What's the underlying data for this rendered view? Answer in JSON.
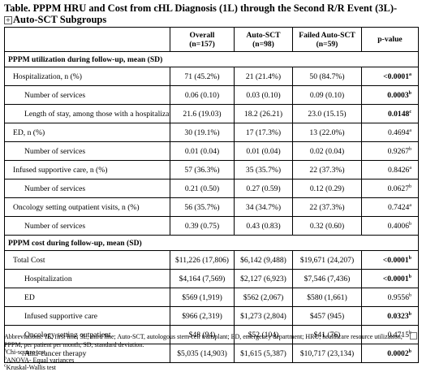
{
  "title_line1": "Table. PPPM HRU and Cost from cHL Diagnosis (1L) through the Second R/R Event (3L)-",
  "title_line2": "Auto-SCT Subgroups",
  "anchor_glyph": "+",
  "headers": {
    "overall": "Overall",
    "overall_n": "(n=157)",
    "auto": "Auto-SCT",
    "auto_n": "(n=98)",
    "failed": "Failed Auto-SCT",
    "failed_n": "(n=59)",
    "pvalue": "p-value"
  },
  "sections": [
    {
      "heading": "PPPM utilization during follow-up, mean (SD)",
      "rows": [
        {
          "label": "Hospitalization, n (%)",
          "overall": "71 (45.2%)",
          "auto": "21 (21.4%)",
          "failed": "50 (84.7%)",
          "p": "<0.0001",
          "sup": "a",
          "bold": true,
          "indent": 1
        },
        {
          "label": "Number of services",
          "overall": "0.06 (0.10)",
          "auto": "0.03 (0.10)",
          "failed": "0.09 (0.10)",
          "p": "0.0003",
          "sup": "b",
          "bold": true,
          "indent": 2
        },
        {
          "label": "Length of stay, among those with a hospitalization",
          "overall": "21.6 (19.03)",
          "auto": "18.2 (26.21)",
          "failed": "23.0 (15.15)",
          "p": "0.0148",
          "sup": "c",
          "bold": true,
          "indent": 2
        },
        {
          "label": "ED, n (%)",
          "overall": "30 (19.1%)",
          "auto": "17 (17.3%)",
          "failed": "13 (22.0%)",
          "p": "0.4694",
          "sup": "a",
          "bold": false,
          "indent": 1
        },
        {
          "label": "Number of services",
          "overall": "0.01 (0.04)",
          "auto": "0.01 (0.04)",
          "failed": "0.02 (0.04)",
          "p": "0.9267",
          "sup": "b",
          "bold": false,
          "indent": 2
        },
        {
          "label": "Infused supportive care, n (%)",
          "overall": "57 (36.3%)",
          "auto": "35 (35.7%)",
          "failed": "22 (37.3%)",
          "p": "0.8426",
          "sup": "a",
          "bold": false,
          "indent": 1
        },
        {
          "label": "Number of services",
          "overall": "0.21 (0.50)",
          "auto": "0.27 (0.59)",
          "failed": "0.12 (0.29)",
          "p": "0.0627",
          "sup": "b",
          "bold": false,
          "indent": 2
        },
        {
          "label": "Oncology setting outpatient visits, n (%)",
          "overall": "56 (35.7%)",
          "auto": "34 (34.7%)",
          "failed": "22 (37.3%)",
          "p": "0.7424",
          "sup": "a",
          "bold": false,
          "indent": 1
        },
        {
          "label": "Number of services",
          "overall": "0.39 (0.75)",
          "auto": "0.43 (0.83)",
          "failed": "0.32 (0.60)",
          "p": "0.4006",
          "sup": "b",
          "bold": false,
          "indent": 2
        }
      ]
    },
    {
      "heading": "PPPM cost during follow-up, mean (SD)",
      "rows": [
        {
          "label": "Total Cost",
          "overall": "$11,226 (17,806)",
          "auto": "$6,142 (9,488)",
          "failed": "$19,671 (24,207)",
          "p": "<0.0001",
          "sup": "b",
          "bold": true,
          "indent": 1
        },
        {
          "label": "Hospitalization",
          "overall": "$4,164 (7,569)",
          "auto": "$2,127 (6,923)",
          "failed": "$7,546 (7,436)",
          "p": "<0.0001",
          "sup": "b",
          "bold": true,
          "indent": 2
        },
        {
          "label": "ED",
          "overall": "$569 (1,919)",
          "auto": "$562 (2,067)",
          "failed": "$580 (1,661)",
          "p": "0.9556",
          "sup": "b",
          "bold": false,
          "indent": 2
        },
        {
          "label": "Infused supportive care",
          "overall": "$966 (2,319)",
          "auto": "$1,273 (2,804)",
          "failed": "$457 (945)",
          "p": "0.0323",
          "sup": "b",
          "bold": true,
          "indent": 2
        },
        {
          "label": "Oncology setting outpatient",
          "overall": "$48 (94)",
          "auto": "$52 (104)",
          "failed": "$41 (76)",
          "p": "0.4715",
          "sup": "b",
          "bold": false,
          "indent": 2
        },
        {
          "label": "Anti-cancer therapy",
          "overall": "$5,035 (14,903)",
          "auto": "$1,615 (5,387)",
          "failed": "$10,717 (23,134)",
          "p": "0.0002",
          "sup": "b",
          "bold": true,
          "indent": 2
        }
      ]
    }
  ],
  "footnotes": {
    "abbreviations": "Abbreviations: 1L, first line; 3L, third line; Auto-SCT, autologous stem cell transplant; ED, emergency department; HRU, healthcare resource utilization; PPPM, per patient per month; SD, standard deviation.",
    "a_sup": "a",
    "a_text": "Chi-square test",
    "b_sup": "b",
    "b_text": "ANOVA- Equal variances",
    "c_sup": "c",
    "c_text": "Kruskal-Wallis test"
  }
}
